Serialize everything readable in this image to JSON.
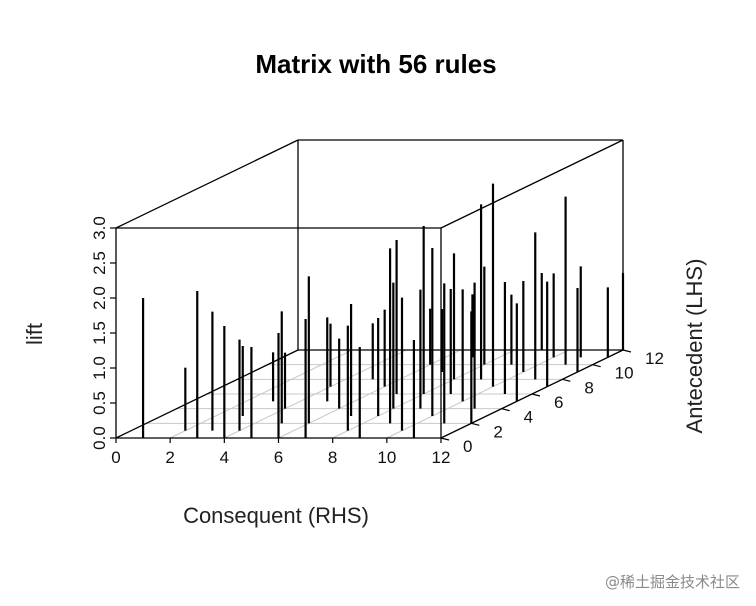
{
  "chart_data": {
    "type": "scatter",
    "style": "3d-histogram",
    "title": "Matrix with 56 rules",
    "xlabel": "Consequent (RHS)",
    "ylabel": "Antecedent (LHS)",
    "zlabel": "lift",
    "xlim": [
      0,
      12
    ],
    "ylim": [
      0,
      12
    ],
    "zlim": [
      0,
      3
    ],
    "x_ticks": [
      0,
      2,
      4,
      6,
      8,
      10,
      12
    ],
    "y_ticks": [
      0,
      2,
      4,
      6,
      8,
      10,
      12
    ],
    "z_ticks": [
      "0.0",
      "0.5",
      "1.0",
      "1.5",
      "2.0",
      "2.5",
      "3.0"
    ],
    "grid": true,
    "color": "#000000",
    "points": [
      {
        "x": 1,
        "y": 0,
        "z": 2.0
      },
      {
        "x": 3,
        "y": 0,
        "z": 2.1
      },
      {
        "x": 3,
        "y": 1,
        "z": 1.7
      },
      {
        "x": 4,
        "y": 0,
        "z": 1.6
      },
      {
        "x": 4,
        "y": 1,
        "z": 1.3
      },
      {
        "x": 5,
        "y": 0,
        "z": 1.3
      },
      {
        "x": 5,
        "y": 2,
        "z": 1.6
      },
      {
        "x": 6,
        "y": 0,
        "z": 1.5
      },
      {
        "x": 6,
        "y": 2,
        "z": 2.1
      },
      {
        "x": 6,
        "y": 4,
        "z": 1.0
      },
      {
        "x": 7,
        "y": 0,
        "z": 1.7
      },
      {
        "x": 7,
        "y": 3,
        "z": 1.6
      },
      {
        "x": 7,
        "y": 6,
        "z": 2.2
      },
      {
        "x": 8,
        "y": 1,
        "z": 1.5
      },
      {
        "x": 8,
        "y": 3,
        "z": 1.4
      },
      {
        "x": 8,
        "y": 4,
        "z": 1.8
      },
      {
        "x": 8,
        "y": 6,
        "z": 2.4
      },
      {
        "x": 8,
        "y": 8,
        "z": 1.8
      },
      {
        "x": 9,
        "y": 0,
        "z": 1.3
      },
      {
        "x": 9,
        "y": 2,
        "z": 2.5
      },
      {
        "x": 9,
        "y": 4,
        "z": 1.7
      },
      {
        "x": 9,
        "y": 6,
        "z": 1.5
      },
      {
        "x": 9,
        "y": 8,
        "z": 2.5
      },
      {
        "x": 10,
        "y": 1,
        "z": 1.9
      },
      {
        "x": 10,
        "y": 3,
        "z": 2.4
      },
      {
        "x": 10,
        "y": 5,
        "z": 1.6
      },
      {
        "x": 10,
        "y": 7,
        "z": 2.9
      },
      {
        "x": 11,
        "y": 0,
        "z": 1.4
      },
      {
        "x": 11,
        "y": 2,
        "z": 2.0
      },
      {
        "x": 11,
        "y": 4,
        "z": 1.8
      },
      {
        "x": 11,
        "y": 6,
        "z": 1.6
      },
      {
        "x": 11,
        "y": 8,
        "z": 2.1
      },
      {
        "x": 11,
        "y": 10,
        "z": 2.4
      },
      {
        "x": 12,
        "y": 2,
        "z": 1.6
      },
      {
        "x": 12,
        "y": 5,
        "z": 1.4
      },
      {
        "x": 12,
        "y": 9,
        "z": 1.2
      },
      {
        "x": 7,
        "y": 9,
        "z": 0.9
      },
      {
        "x": 6,
        "y": 7,
        "z": 1.1
      },
      {
        "x": 5,
        "y": 5,
        "z": 1.2
      },
      {
        "x": 4,
        "y": 4,
        "z": 0.8
      },
      {
        "x": 3,
        "y": 3,
        "z": 1.0
      },
      {
        "x": 9,
        "y": 10,
        "z": 1.0
      },
      {
        "x": 10,
        "y": 9,
        "z": 1.3
      },
      {
        "x": 12,
        "y": 7,
        "z": 1.5
      },
      {
        "x": 2,
        "y": 1,
        "z": 0.9
      },
      {
        "x": 8,
        "y": 10,
        "z": 1.4
      },
      {
        "x": 10,
        "y": 11,
        "z": 1.2
      },
      {
        "x": 6,
        "y": 10,
        "z": 0.8
      },
      {
        "x": 12,
        "y": 11,
        "z": 1.0
      },
      {
        "x": 3,
        "y": 5,
        "z": 0.7
      },
      {
        "x": 11,
        "y": 11,
        "z": 1.3
      },
      {
        "x": 7,
        "y": 11,
        "z": 0.9
      },
      {
        "x": 9,
        "y": 12,
        "z": 1.1
      },
      {
        "x": 5,
        "y": 8,
        "z": 0.8
      },
      {
        "x": 12,
        "y": 12,
        "z": 1.1
      },
      {
        "x": 4,
        "y": 7,
        "z": 0.9
      }
    ]
  },
  "watermark": "@稀土掘金技术社区"
}
